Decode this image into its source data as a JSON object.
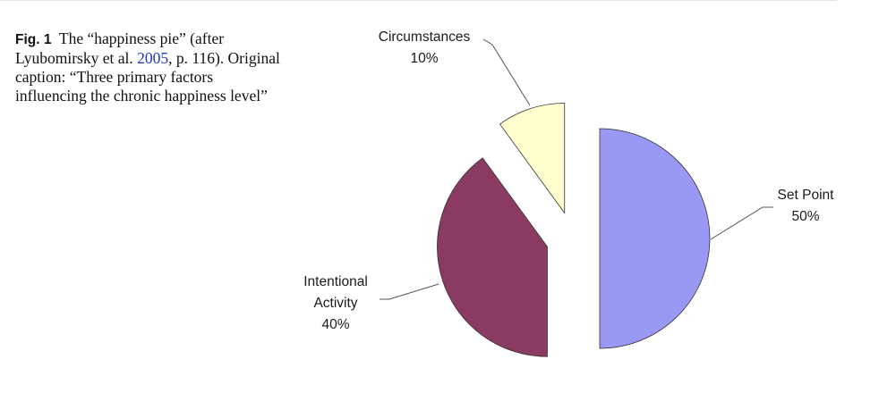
{
  "caption": {
    "fig_label": "Fig. 1",
    "text_before_link": "The “happiness pie” (after Lyubomirsky et al. ",
    "link_text": "2005",
    "text_after_link": ", p. 116). Original caption: “Three primary factors influencing the chronic happiness level”"
  },
  "chart_data": {
    "type": "pie",
    "slices": [
      {
        "label": "Set Point",
        "percent_label": "50%",
        "value": 50,
        "color": "#9999f5"
      },
      {
        "label": "Intentional Activity",
        "label_lines": [
          "Intentional",
          "Activity"
        ],
        "percent_label": "40%",
        "value": 40,
        "color": "#8b3a62"
      },
      {
        "label": "Circumstances",
        "percent_label": "10%",
        "value": 10,
        "color": "#ffffcf"
      }
    ],
    "legend": "none",
    "exploded": true
  }
}
